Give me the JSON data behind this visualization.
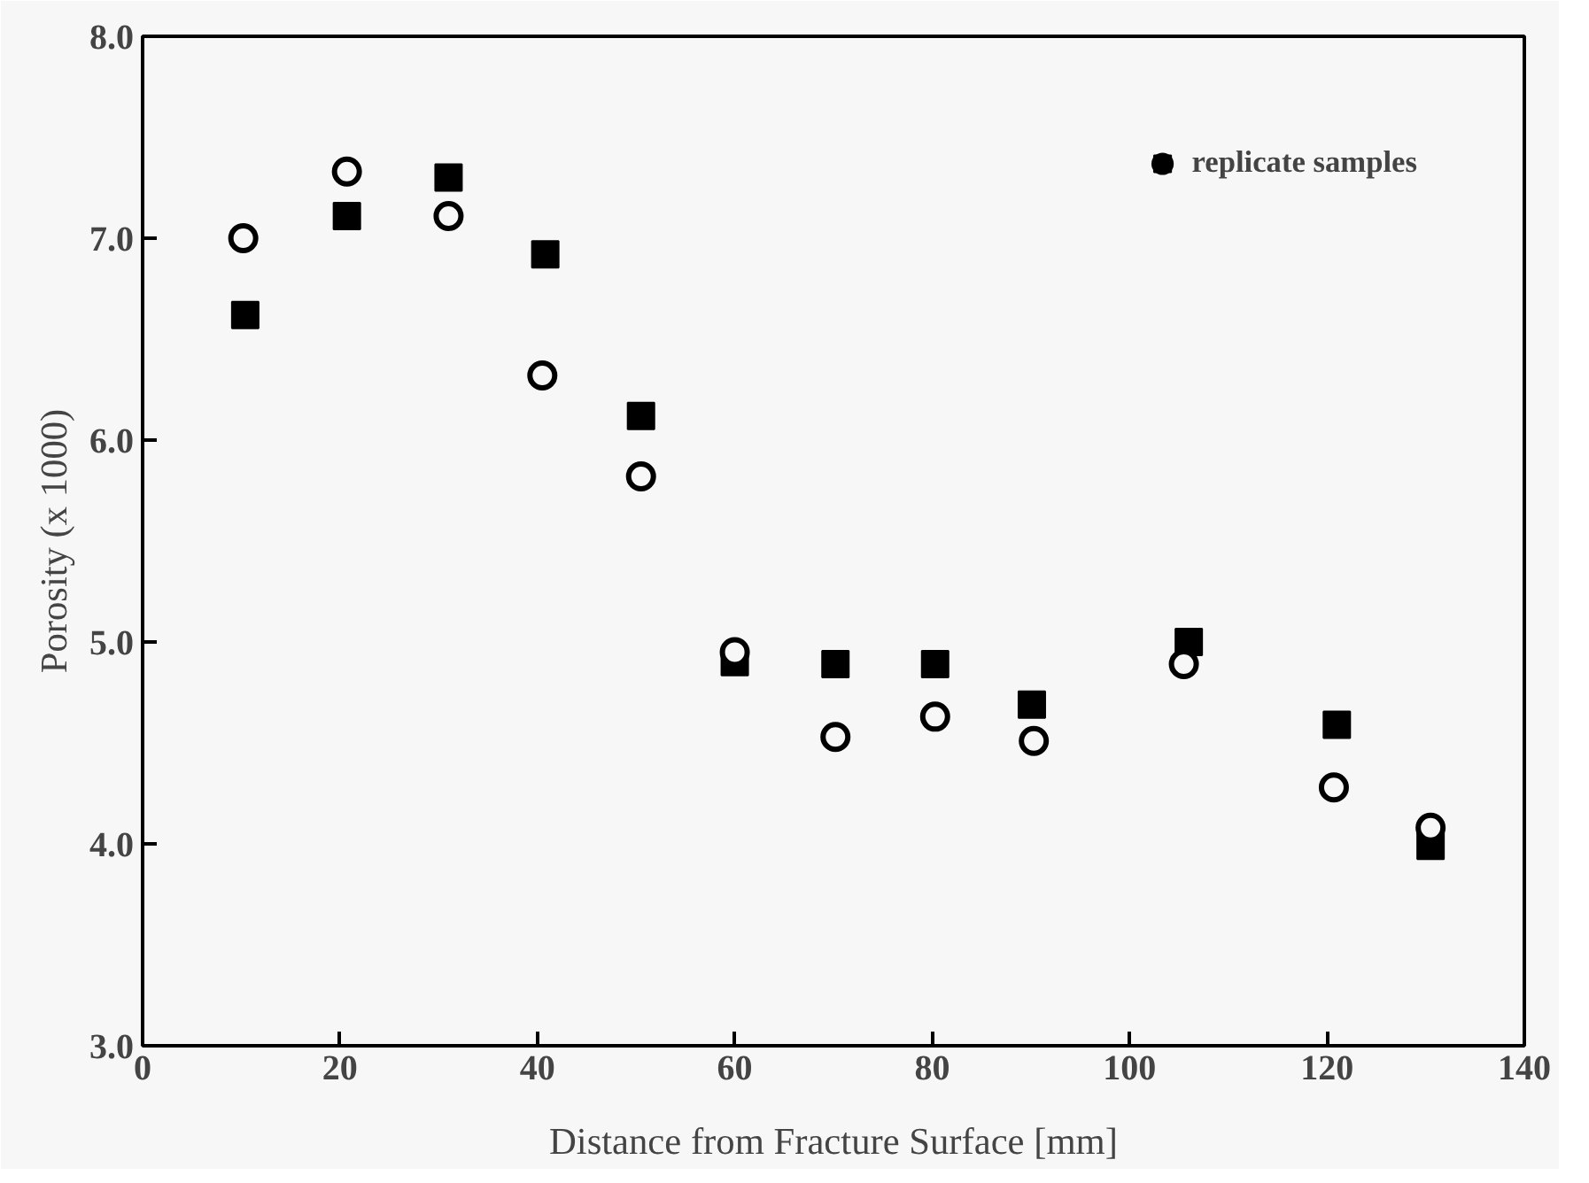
{
  "chart_data": {
    "type": "scatter",
    "xlabel": "Distance from Fracture Surface [mm]",
    "ylabel": "Porosity (x 1000)",
    "legend": "top right",
    "grid": false,
    "xlim": [
      0,
      140
    ],
    "xticks": [
      0,
      20,
      40,
      60,
      80,
      100,
      120,
      140
    ],
    "ylim": [
      3.0,
      8.0
    ],
    "yticks": [
      {
        "value": 3,
        "label": "3.0"
      },
      {
        "value": 4,
        "label": "4.0"
      },
      {
        "value": 5,
        "label": "5.0"
      },
      {
        "value": 6,
        "label": "6.0"
      },
      {
        "value": 7,
        "label": "7.0"
      },
      {
        "value": 8,
        "label": "8.0"
      }
    ],
    "series": [
      {
        "name": "replicate samples",
        "color": "#000000",
        "marker": "circle",
        "x": [
          10.2,
          20.7,
          31,
          40.5,
          50.5,
          60,
          70.2,
          80.3,
          90.3,
          105.5,
          120.7,
          130.5
        ],
        "values": [
          7.0,
          7.33,
          7.11,
          6.32,
          5.82,
          4.95,
          4.53,
          4.63,
          4.51,
          4.89,
          4.28,
          4.08
        ]
      },
      {
        "color": "#000000",
        "marker": "square",
        "x": [
          10.4,
          20.7,
          31,
          40.8,
          50.5,
          60,
          70.2,
          80.3,
          90.1,
          106,
          121,
          130.5
        ],
        "values": [
          6.62,
          7.11,
          7.3,
          6.92,
          6.12,
          4.9,
          4.89,
          4.89,
          4.69,
          5.0,
          4.59,
          3.99
        ]
      }
    ]
  }
}
